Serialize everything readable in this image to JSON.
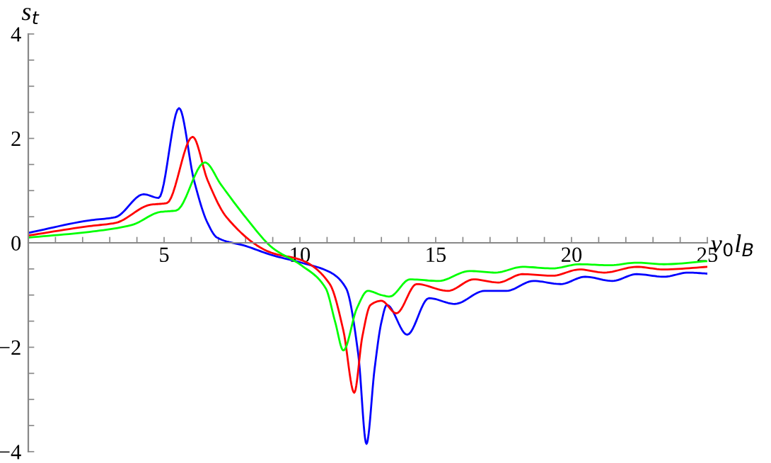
{
  "chart_data": {
    "type": "line",
    "xlabel": "v$_{0}$l$_{B}$",
    "ylabel": "s$_{t}$",
    "xlim": [
      0,
      25
    ],
    "ylim": [
      -4,
      4
    ],
    "xticks": [
      {
        "value": 1,
        "label": null
      },
      {
        "value": 2,
        "label": null
      },
      {
        "value": 3,
        "label": null
      },
      {
        "value": 4,
        "label": null
      },
      5,
      {
        "value": 6,
        "label": null
      },
      {
        "value": 7,
        "label": null
      },
      {
        "value": 8,
        "label": null
      },
      {
        "value": 9,
        "label": null
      },
      10,
      {
        "value": 11,
        "label": null
      },
      {
        "value": 12,
        "label": null
      },
      {
        "value": 13,
        "label": null
      },
      {
        "value": 14,
        "label": null
      },
      15,
      {
        "value": 16,
        "label": null
      },
      {
        "value": 17,
        "label": null
      },
      {
        "value": 18,
        "label": null
      },
      {
        "value": 19,
        "label": null
      },
      20,
      {
        "value": 21,
        "label": null
      },
      {
        "value": 22,
        "label": null
      },
      {
        "value": 23,
        "label": null
      },
      {
        "value": 24,
        "label": null
      },
      25
    ],
    "yticks": [
      -4,
      {
        "value": -3.5,
        "label": null
      },
      {
        "value": -3,
        "label": null
      },
      {
        "value": -2.5,
        "label": null
      },
      -2,
      {
        "value": -1.5,
        "label": null
      },
      {
        "value": -1,
        "label": null
      },
      {
        "value": -0.5,
        "label": null
      },
      0,
      {
        "value": 0.5,
        "label": null
      },
      {
        "value": 1,
        "label": null
      },
      {
        "value": 1.5,
        "label": null
      },
      2,
      {
        "value": 2.5,
        "label": null
      },
      {
        "value": 3,
        "label": null
      },
      {
        "value": 3.5,
        "label": null
      },
      4
    ],
    "grid": false,
    "legend": false,
    "marker": "none",
    "line_style": "solid",
    "series": [
      {
        "color": "#0000ff",
        "x": [
          0,
          2.25,
          3.2,
          4.25,
          4.8,
          5.55,
          6.1,
          6.6,
          6.95,
          8.0,
          9.0,
          10.05,
          11.1,
          11.7,
          12.15,
          12.45,
          12.75,
          13.0,
          13.2,
          13.95,
          14.75,
          15.7,
          16.8,
          17.6,
          18.6,
          19.6,
          20.5,
          21.5,
          22.4,
          23.4,
          24.3,
          25
        ],
        "values": [
          0.19,
          0.43,
          0.49,
          0.93,
          0.86,
          2.58,
          1.2,
          0.38,
          0.1,
          -0.06,
          -0.24,
          -0.38,
          -0.56,
          -0.87,
          -2.14,
          -3.85,
          -2.41,
          -1.52,
          -1.19,
          -1.76,
          -1.06,
          -1.17,
          -0.92,
          -0.92,
          -0.73,
          -0.79,
          -0.65,
          -0.73,
          -0.6,
          -0.65,
          -0.57,
          -0.59
        ]
      },
      {
        "color": "#ff0000",
        "x": [
          0,
          2.25,
          3.2,
          4.5,
          5.1,
          6.05,
          6.6,
          7.3,
          8.95,
          10.05,
          11.1,
          11.6,
          12.0,
          12.3,
          12.6,
          13.0,
          13.55,
          14.3,
          15.45,
          16.4,
          17.3,
          18.2,
          19.3,
          20.3,
          21.2,
          22.4,
          23.4,
          25
        ],
        "values": [
          0.14,
          0.32,
          0.38,
          0.73,
          0.76,
          2.03,
          1.2,
          0.49,
          -0.19,
          -0.33,
          -0.79,
          -1.68,
          -2.87,
          -1.79,
          -1.19,
          -1.11,
          -1.35,
          -0.79,
          -0.92,
          -0.7,
          -0.76,
          -0.6,
          -0.63,
          -0.51,
          -0.57,
          -0.46,
          -0.51,
          -0.46
        ]
      },
      {
        "color": "#00ff00",
        "x": [
          0,
          2.25,
          3.8,
          4.85,
          5.45,
          6.5,
          7.1,
          8.0,
          9.0,
          10.05,
          10.95,
          11.3,
          11.6,
          12.1,
          12.5,
          13.0,
          13.3,
          14.05,
          15.1,
          16.25,
          17.2,
          18.2,
          19.3,
          20.3,
          21.4,
          22.4,
          23.4,
          25
        ],
        "values": [
          0.1,
          0.21,
          0.34,
          0.59,
          0.62,
          1.54,
          1.11,
          0.49,
          -0.1,
          -0.43,
          -0.87,
          -1.52,
          -2.06,
          -1.25,
          -0.92,
          -1.0,
          -1.03,
          -0.7,
          -0.73,
          -0.54,
          -0.57,
          -0.46,
          -0.49,
          -0.41,
          -0.43,
          -0.38,
          -0.41,
          -0.35
        ]
      }
    ]
  }
}
